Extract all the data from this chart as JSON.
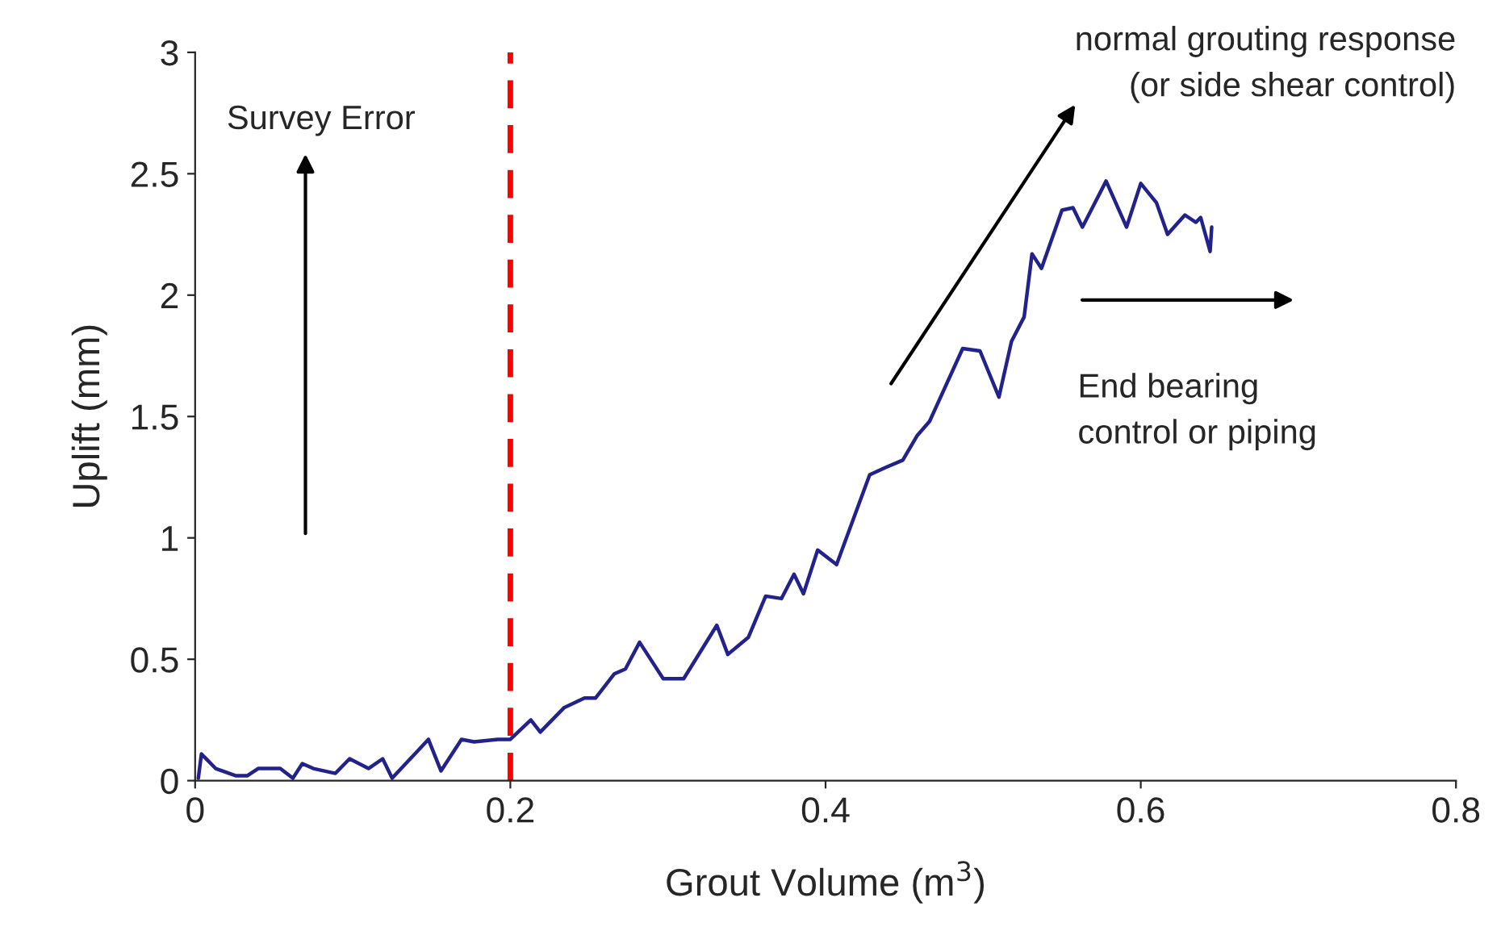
{
  "chart_data": {
    "type": "line",
    "xlabel": "Grout Volume (m$^{3}$)",
    "ylabel": "Uplift (mm)",
    "xlim": [
      0,
      0.8
    ],
    "xticks": [
      0,
      0.2,
      0.4,
      0.6,
      0.8
    ],
    "ylim": [
      0,
      3
    ],
    "yticks": [
      0,
      0.5,
      1,
      1.5,
      2,
      2.5,
      3
    ],
    "grid": false,
    "legend": false,
    "marker": "none",
    "line_style": "solid",
    "series": [
      {
        "color": "#22228c",
        "x": [
          0.002,
          0.004,
          0.013,
          0.026,
          0.033,
          0.04,
          0.054,
          0.062,
          0.068,
          0.075,
          0.089,
          0.098,
          0.11,
          0.119,
          0.125,
          0.148,
          0.156,
          0.169,
          0.177,
          0.192,
          0.2,
          0.213,
          0.219,
          0.234,
          0.247,
          0.254,
          0.266,
          0.273,
          0.282,
          0.297,
          0.31,
          0.331,
          0.338,
          0.351,
          0.362,
          0.372,
          0.38,
          0.386,
          0.395,
          0.407,
          0.428,
          0.438,
          0.449,
          0.458,
          0.466,
          0.487,
          0.498,
          0.51,
          0.518,
          0.526,
          0.531,
          0.537,
          0.55,
          0.557,
          0.563,
          0.578,
          0.591,
          0.6,
          0.61,
          0.617,
          0.628,
          0.635,
          0.638,
          0.644,
          0.645
        ],
        "values": [
          0.01,
          0.11,
          0.05,
          0.02,
          0.02,
          0.05,
          0.05,
          0.01,
          0.07,
          0.05,
          0.03,
          0.09,
          0.05,
          0.09,
          0.01,
          0.17,
          0.04,
          0.17,
          0.16,
          0.17,
          0.17,
          0.25,
          0.2,
          0.3,
          0.34,
          0.34,
          0.44,
          0.46,
          0.57,
          0.42,
          0.42,
          0.64,
          0.52,
          0.59,
          0.76,
          0.75,
          0.85,
          0.77,
          0.95,
          0.89,
          1.26,
          1.29,
          1.32,
          1.42,
          1.48,
          1.78,
          1.77,
          1.58,
          1.81,
          1.91,
          2.17,
          2.11,
          2.35,
          2.36,
          2.28,
          2.47,
          2.28,
          2.46,
          2.38,
          2.25,
          2.33,
          2.3,
          2.32,
          2.18,
          2.28
        ]
      }
    ],
    "ref_lines": [
      {
        "axis": "x",
        "value": 0.2,
        "color": "#ff0000",
        "line_style": "dashed"
      }
    ],
    "annotations": [
      "Survey Error",
      "normal grouting response\n(or side shear control)",
      "End bearing\ncontrol or piping"
    ]
  }
}
